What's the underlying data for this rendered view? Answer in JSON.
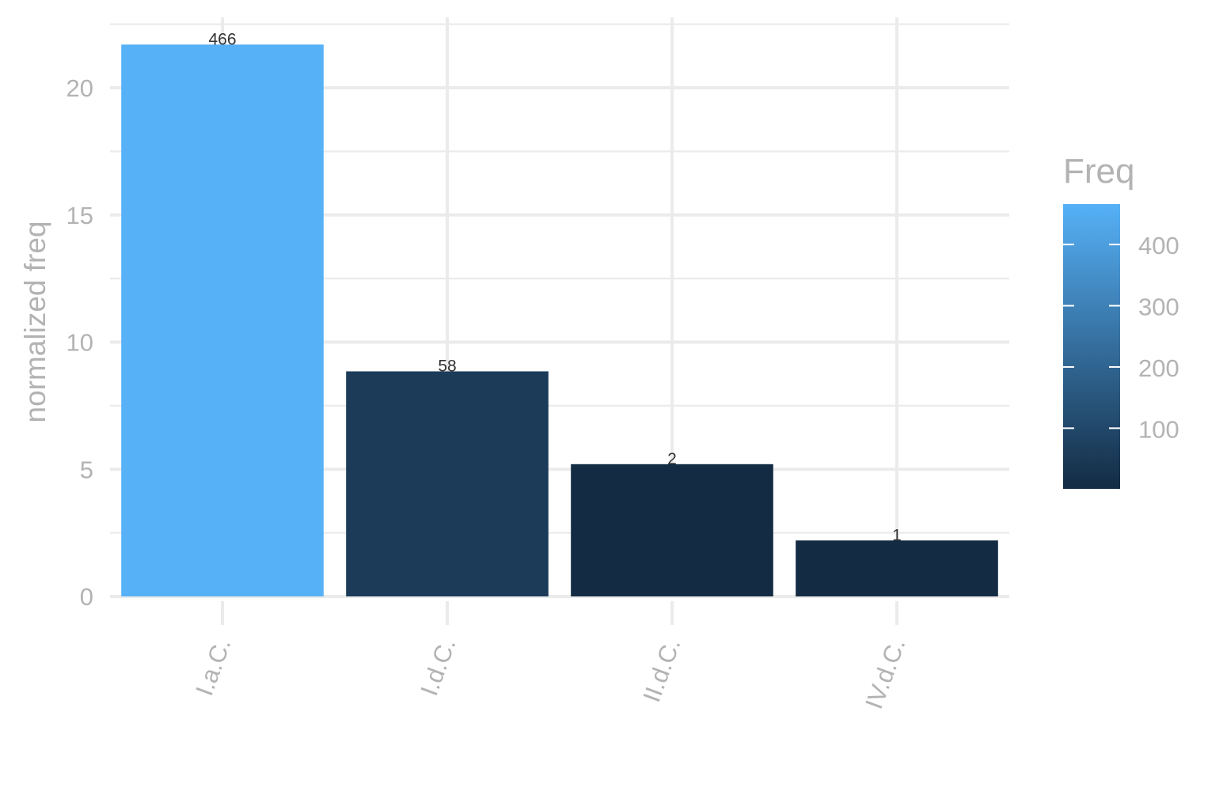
{
  "chart_data": {
    "type": "bar",
    "categories": [
      "I.a.C.",
      "I.d.C.",
      "II.d.C.",
      "IV.d.C."
    ],
    "values": [
      21.7,
      8.85,
      5.2,
      2.2
    ],
    "freq": [
      466,
      58,
      2,
      1
    ],
    "data_labels": [
      "466",
      "58",
      "2",
      "1"
    ],
    "ylabel": "normalized freq",
    "xlabel": "",
    "ylim": [
      0,
      22.5
    ],
    "y_ticks": [
      0,
      5,
      10,
      15,
      20
    ],
    "y_tick_labels": [
      "0",
      "5",
      "10",
      "15",
      "20"
    ],
    "grid": true,
    "legend": {
      "title": "Freq",
      "position": "right",
      "type": "colorbar",
      "range": [
        1,
        466
      ],
      "ticks": [
        100,
        200,
        300,
        400
      ],
      "tick_labels": [
        "100",
        "200",
        "300",
        "400"
      ],
      "low_color": "#132B43",
      "high_color": "#56B1F7"
    }
  }
}
